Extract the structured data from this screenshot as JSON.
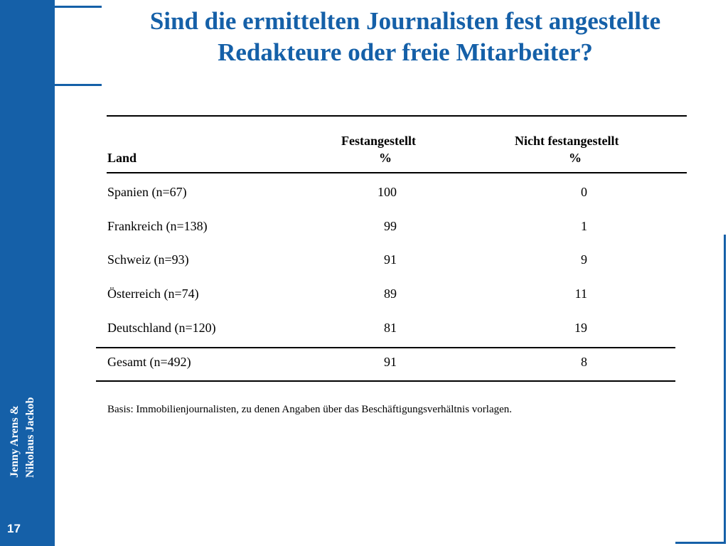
{
  "sidebar": {
    "authors_line1": "Jenny Arens &",
    "authors_line2": "Nikolaus Jackob",
    "page_number": "17",
    "color": "#1560a8"
  },
  "slide": {
    "title": "Sind die ermittelten Journalisten fest angestellte Redakteure oder freie Mitarbeiter?"
  },
  "table": {
    "headers": {
      "land": "Land",
      "fest": "Festangestellt",
      "fest_unit": "%",
      "nicht": "Nicht festangestellt",
      "nicht_unit": "%"
    },
    "rows": [
      {
        "land": "Spanien (n=67)",
        "fest": "100",
        "nicht": "0"
      },
      {
        "land": "Frankreich (n=138)",
        "fest": "99",
        "nicht": "1"
      },
      {
        "land": "Schweiz (n=93)",
        "fest": "91",
        "nicht": "9"
      },
      {
        "land": "Österreich (n=74)",
        "fest": "89",
        "nicht": "11"
      },
      {
        "land": "Deutschland (n=120)",
        "fest": "81",
        "nicht": "19"
      }
    ],
    "total": {
      "land": "Gesamt (n=492)",
      "fest": "91",
      "nicht": "8"
    },
    "note": "Basis: Immobilienjournalisten, zu denen Angaben über das Beschäftigungsverhältnis vorlagen."
  }
}
